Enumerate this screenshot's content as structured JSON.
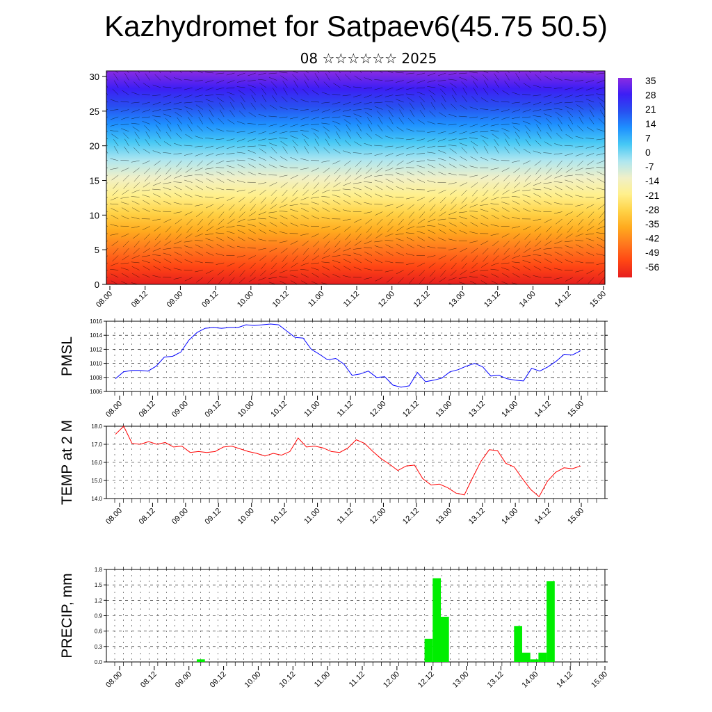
{
  "title": "Kazhydromet for Satpaev6(45.75 50.5)",
  "subtitle": "08 ☆☆☆☆☆☆ 2025",
  "time_labels": [
    "08.00",
    "08.12",
    "09.00",
    "09.12",
    "10.00",
    "10.12",
    "11.00",
    "11.12",
    "12.00",
    "12.12",
    "13.00",
    "13.12",
    "14.00",
    "14.12",
    "15.00"
  ],
  "colors": {
    "pmsl_line": "#0000ff",
    "temp_line": "#ff0000",
    "precip_bar": "#00ee00"
  },
  "chart_data": [
    {
      "type": "heatmap",
      "title": "",
      "xlabel": "",
      "ylabel": "",
      "ylim": [
        0,
        30
      ],
      "y_ticks": [
        0,
        5,
        10,
        15,
        20,
        25,
        30
      ],
      "colorbar_labels": [
        "35",
        "28",
        "21",
        "14",
        "7",
        "0",
        "-7",
        "-14",
        "-21",
        "-28",
        "-35",
        "-42",
        "-49",
        "-56"
      ],
      "overlay": "wind barbs",
      "colormap": [
        "#8a2be2",
        "#3c1ef5",
        "#2850f0",
        "#1e90ff",
        "#46c8f5",
        "#aee6f0",
        "#f0f0c8",
        "#fff08c",
        "#ffd246",
        "#ffaa1e",
        "#ff781e",
        "#ff4614",
        "#e61e1e"
      ]
    },
    {
      "type": "line",
      "ylabel": "PMSL",
      "ylim": [
        1006,
        1016
      ],
      "y_ticks": [
        "1006",
        "1008",
        "1010",
        "1012",
        "1014",
        "1016"
      ],
      "series": [
        {
          "values": [
            1007.8,
            1008.8,
            1009.0,
            1009.0,
            1008.9,
            1009.6,
            1010.9,
            1011.0,
            1011.6,
            1013.3,
            1014.4,
            1015.0,
            1015.1,
            1015.0,
            1015.1,
            1015.1,
            1015.5,
            1015.4,
            1015.5,
            1015.6,
            1015.5,
            1014.6,
            1013.7,
            1013.6,
            1012.0,
            1011.3,
            1010.5,
            1010.7,
            1009.9,
            1008.3,
            1008.5,
            1008.9,
            1008.0,
            1008.1,
            1006.9,
            1006.6,
            1006.8,
            1008.7,
            1007.4,
            1007.6,
            1007.9,
            1008.8,
            1009.1,
            1009.6,
            1010.0,
            1009.5,
            1008.2,
            1008.3,
            1007.8,
            1007.6,
            1007.5,
            1009.3,
            1008.9,
            1009.5,
            1010.3,
            1011.3,
            1011.2,
            1011.8
          ]
        }
      ]
    },
    {
      "type": "line",
      "ylabel": "TEMP at 2 M",
      "ylim": [
        14.0,
        18.0
      ],
      "y_ticks": [
        "14.0",
        "15.0",
        "16.0",
        "17.0",
        "18.0"
      ],
      "series": [
        {
          "values": [
            17.55,
            18.0,
            17.05,
            17.0,
            17.15,
            17.0,
            17.1,
            16.85,
            16.9,
            16.55,
            16.6,
            16.55,
            16.6,
            16.85,
            16.9,
            16.75,
            16.6,
            16.5,
            16.35,
            16.5,
            16.4,
            16.6,
            17.35,
            16.85,
            16.9,
            16.8,
            16.6,
            16.55,
            16.8,
            17.25,
            17.05,
            16.6,
            16.2,
            15.9,
            15.55,
            15.8,
            15.85,
            15.1,
            14.75,
            14.8,
            14.6,
            14.3,
            14.2,
            15.15,
            16.05,
            16.7,
            16.65,
            15.95,
            15.75,
            15.1,
            14.5,
            14.1,
            14.95,
            15.45,
            15.7,
            15.65,
            15.8
          ]
        }
      ]
    },
    {
      "type": "bar",
      "ylabel": "PRECIP, mm",
      "ylim": [
        0.0,
        1.8
      ],
      "y_ticks": [
        "0.0",
        "0.3",
        "0.6",
        "0.9",
        "1.2",
        "1.5",
        "1.8"
      ],
      "series": [
        {
          "bars": [
            {
              "t": 10,
              "value": 0.05
            },
            {
              "t": 38,
              "value": 0.45
            },
            {
              "t": 39,
              "value": 1.63
            },
            {
              "t": 40,
              "value": 0.88
            },
            {
              "t": 49,
              "value": 0.7
            },
            {
              "t": 50,
              "value": 0.18
            },
            {
              "t": 51,
              "value": 0.05
            },
            {
              "t": 52,
              "value": 0.18
            },
            {
              "t": 53,
              "value": 1.57
            }
          ]
        }
      ]
    }
  ]
}
